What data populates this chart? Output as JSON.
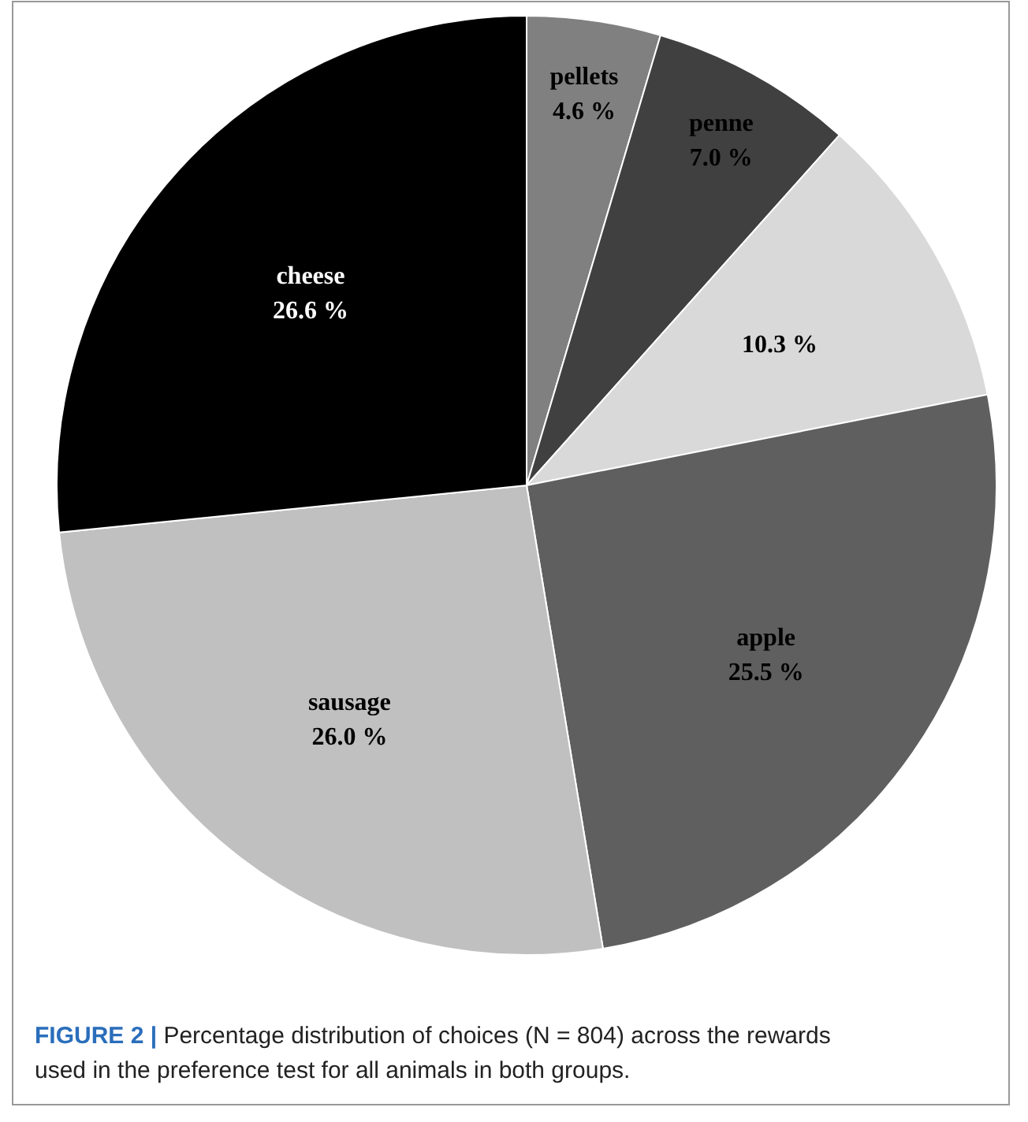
{
  "chart_data": {
    "type": "pie",
    "categories": [
      "pellets",
      "penne",
      null,
      "apple",
      "sausage",
      "cheese"
    ],
    "values": [
      4.6,
      7.0,
      10.3,
      25.5,
      26.0,
      26.6
    ],
    "colors": [
      "#808080",
      "#404040",
      "#d9d9d9",
      "#5f5f5f",
      "#c0c0c0",
      "#000000"
    ],
    "value_labels": [
      "4.6 %",
      "7.0 %",
      "10.3 %",
      "25.5 %",
      "26.0 %",
      "26.6 %"
    ],
    "annotations": [
      "FIGURE 2 | Percentage distribution of choices (N = 804) across the rewards used in the preference test for all animals in both groups."
    ]
  }
}
